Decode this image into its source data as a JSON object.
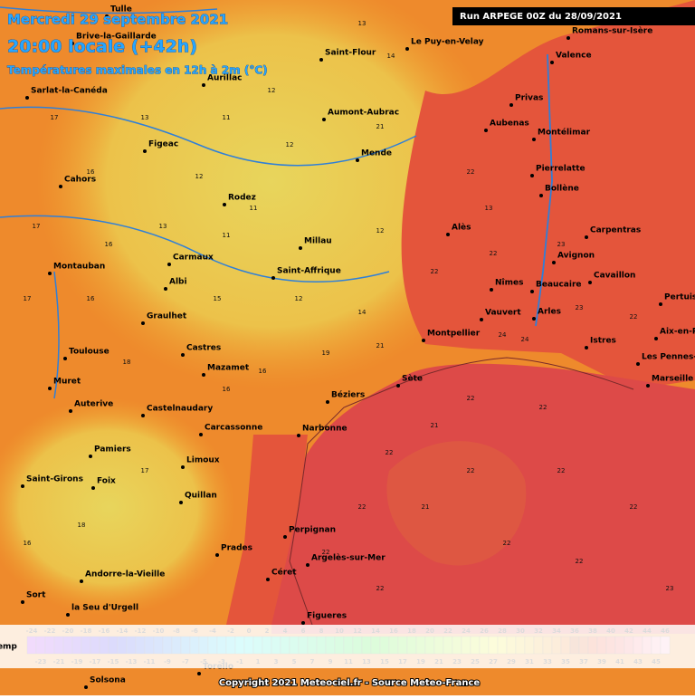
{
  "header": {
    "date": "Mercredi 29 septembre 2021",
    "time": "20:00 locale (+42h)",
    "subtitle": "Températures maximales en 12h à 2m (°C)",
    "run": "Run ARPEGE 00Z du 28/09/2021"
  },
  "cities": [
    "Tulle",
    "Brive-la-Gaillarde",
    "Saint-Flour",
    "Le Puy-en-Velay",
    "Romans-sur-Isère",
    "Valence",
    "Aurillac",
    "Sarlat-la-Canéda",
    "Privas",
    "Aumont-Aubrac",
    "Aubenas",
    "Montélimar",
    "Figeac",
    "Mende",
    "Pierrelatte",
    "Cahors",
    "Bollène",
    "Rodez",
    "Alès",
    "Carpentras",
    "Millau",
    "Avignon",
    "Carmaux",
    "Montauban",
    "Saint-Affrique",
    "Cavaillon",
    "Albi",
    "Nîmes",
    "Beaucaire",
    "Pertuis",
    "Vauvert",
    "Arles",
    "Graulhet",
    "Montpellier",
    "Aix-en-Provence",
    "Istres",
    "Toulouse",
    "Castres",
    "Les Pennes-Mirabeau",
    "Mazamet",
    "Sète",
    "Marseille",
    "Muret",
    "Béziers",
    "Auterive",
    "Castelnaudary",
    "Carcassonne",
    "Narbonne",
    "Pamiers",
    "Limoux",
    "Saint-Girons",
    "Foix",
    "Quillan",
    "Perpignan",
    "Prades",
    "Argelès-sur-Mer",
    "Céret",
    "Andorre-la-Vieille",
    "Sort",
    "la Seu d'Urgell",
    "Figueres",
    "Torello",
    "Solsona"
  ],
  "temperatures": [
    13,
    14,
    12,
    11,
    13,
    17,
    16,
    12,
    11,
    12,
    21,
    22,
    17,
    16,
    13,
    11,
    12,
    13,
    22,
    23,
    17,
    16,
    15,
    12,
    14,
    22,
    24,
    18,
    16,
    16,
    19,
    21,
    24,
    23,
    22,
    22,
    22,
    21,
    22,
    22,
    22,
    22,
    22,
    21,
    22,
    22,
    17,
    18,
    16,
    22,
    22,
    23
  ],
  "scale": {
    "label": "Temp",
    "top_ticks": [
      -24,
      -22,
      -20,
      -18,
      -16,
      -14,
      -12,
      -10,
      -8,
      -6,
      -4,
      -2,
      0,
      2,
      4,
      6,
      8,
      10,
      12,
      14,
      16,
      18,
      20,
      22,
      24,
      26,
      28,
      30,
      32,
      34,
      36,
      38,
      40,
      42,
      44,
      46
    ],
    "bottom_ticks": [
      -23,
      -21,
      -19,
      -17,
      -15,
      -13,
      -11,
      -9,
      -7,
      -5,
      -3,
      -1,
      1,
      3,
      5,
      7,
      9,
      11,
      13,
      15,
      17,
      19,
      21,
      23,
      25,
      27,
      29,
      31,
      33,
      35,
      37,
      39,
      41,
      43,
      45
    ]
  },
  "copyright": "Copyright 2021 Meteociel.fr - Source Meteo-France"
}
